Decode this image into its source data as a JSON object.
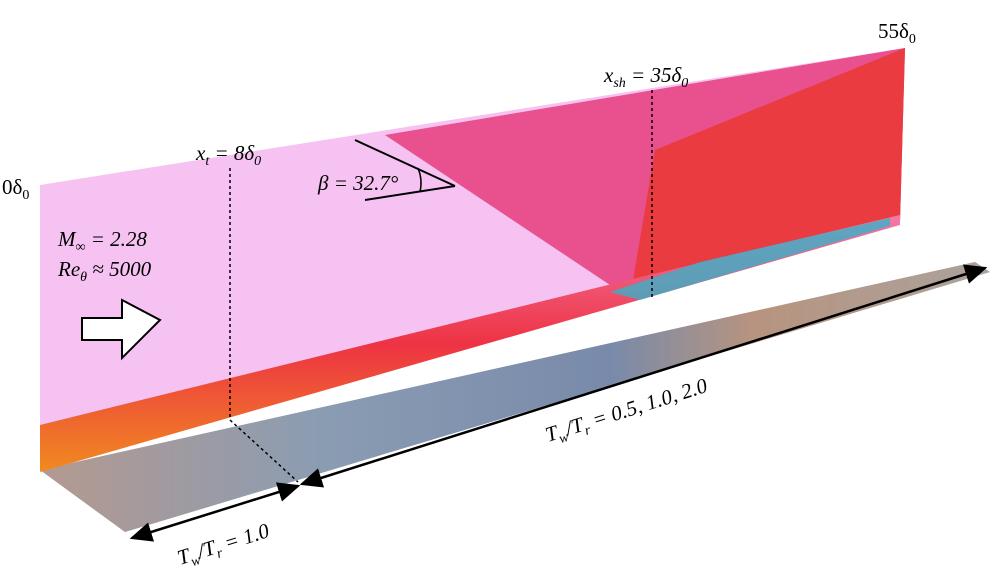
{
  "labels": {
    "end": [
      "55δ",
      "0"
    ],
    "start": [
      "0δ",
      "0"
    ],
    "shock": [
      "x",
      "sh",
      " = 35δ",
      "0"
    ],
    "transition": [
      "x",
      "t",
      " = 8δ",
      "0"
    ],
    "angle": [
      "β = 32.7°"
    ],
    "mach": [
      "M",
      "∞",
      " = 2.28"
    ],
    "reynolds": [
      "Re",
      "θ",
      " ≈ 5000"
    ],
    "ratios_downstream": [
      "T",
      "w",
      "/T",
      "r",
      " = 0.5, 1.0, 2.0"
    ],
    "ratio_upstream": [
      "T",
      "w",
      "/T",
      "r",
      " = 1.0"
    ]
  }
}
